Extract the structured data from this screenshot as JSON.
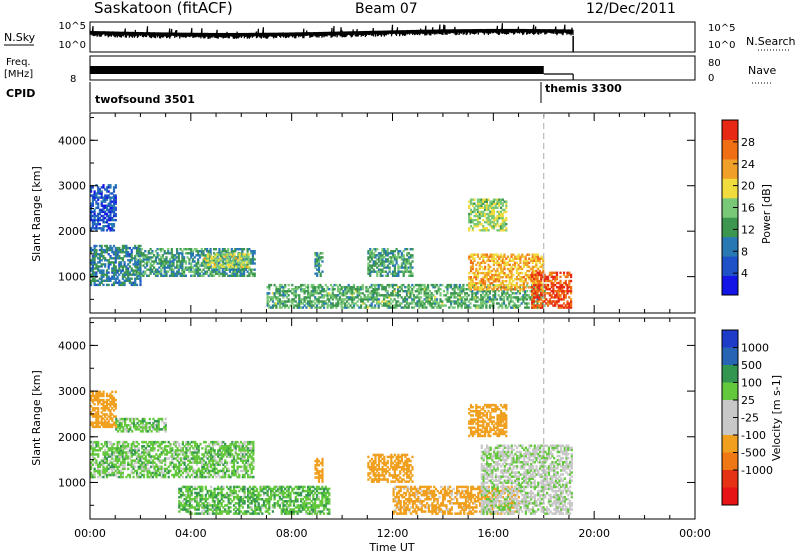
{
  "header": {
    "title": "Saskatoon (fitACF)",
    "beam": "Beam 07",
    "date": "12/Dec/2011"
  },
  "panels": {
    "nsky_label": "N.Sky",
    "nsky_ticks": [
      "10^5",
      "10^0"
    ],
    "nsearch_label": "N.Search",
    "nsearch_ticks": [
      "10^5",
      "10^0"
    ],
    "freq_label": "Freq.",
    "freq_unit": "[MHz]",
    "freq_ticks": [
      "8"
    ],
    "nave_label": "Nave",
    "nave_ticks": [
      "80",
      "0"
    ],
    "cpid_label": "CPID",
    "cpid_programs": [
      {
        "name": "twofsound 3501",
        "start": "00:00"
      },
      {
        "name": "themis 3300",
        "start": "18:00"
      }
    ]
  },
  "colors": {
    "power_scale": [
      "#1414e6",
      "#1e50c8",
      "#2878b4",
      "#3c9650",
      "#78c878",
      "#f0dc3c",
      "#f0a028",
      "#f06e14",
      "#e62814"
    ],
    "velocity_scale": [
      "#1e3cc8",
      "#2864b4",
      "#329650",
      "#64c83c",
      "#c8c8c8",
      "#c8c8c8",
      "#f0a01e",
      "#f07814",
      "#e63214",
      "#e61414"
    ]
  },
  "chart_data": [
    {
      "type": "heatmap",
      "name": "power",
      "ylabel": "Slant Range [km]",
      "yticks": [
        "1000",
        "2000",
        "3000",
        "4000"
      ],
      "ylim": [
        200,
        4600
      ],
      "xticks": [
        "00:00",
        "04:00",
        "08:00",
        "12:00",
        "16:00",
        "20:00",
        "00:00"
      ],
      "colorbar_label": "Power [dB]",
      "colorbar_ticks": [
        "4",
        "8",
        "12",
        "16",
        "20",
        "24",
        "28"
      ],
      "colorbar_range": [
        0,
        32
      ],
      "data_end": "19:10",
      "regions": [
        {
          "t0": 0.0,
          "t1": 2.0,
          "r0": 800,
          "r1": 1700,
          "v": 10
        },
        {
          "t0": 0.0,
          "t1": 1.0,
          "r0": 2000,
          "r1": 3000,
          "v": 6
        },
        {
          "t0": 1.8,
          "t1": 6.5,
          "r0": 1000,
          "r1": 1600,
          "v": 12
        },
        {
          "t0": 4.5,
          "t1": 6.3,
          "r0": 1200,
          "r1": 1500,
          "v": 18
        },
        {
          "t0": 8.9,
          "t1": 9.2,
          "r0": 1000,
          "r1": 1500,
          "v": 12
        },
        {
          "t0": 11.0,
          "t1": 12.8,
          "r0": 1000,
          "r1": 1600,
          "v": 13
        },
        {
          "t0": 7.0,
          "t1": 18.0,
          "r0": 300,
          "r1": 800,
          "v": 14
        },
        {
          "t0": 15.0,
          "t1": 16.5,
          "r0": 2000,
          "r1": 2700,
          "v": 17
        },
        {
          "t0": 15.0,
          "t1": 18.0,
          "r0": 700,
          "r1": 1500,
          "v": 22
        },
        {
          "t0": 17.5,
          "t1": 19.1,
          "r0": 300,
          "r1": 1100,
          "v": 28
        }
      ]
    },
    {
      "type": "heatmap",
      "name": "velocity",
      "ylabel": "Slant Range [km]",
      "yticks": [
        "1000",
        "2000",
        "3000",
        "4000"
      ],
      "ylim": [
        200,
        4600
      ],
      "xticks": [
        "00:00",
        "04:00",
        "08:00",
        "12:00",
        "16:00",
        "20:00",
        "00:00"
      ],
      "xlabel": "Time UT",
      "colorbar_label": "Velocity [m s-1]",
      "colorbar_ticks": [
        "1000",
        "500",
        "100",
        "25",
        "-25",
        "-100",
        "-500",
        "-1000"
      ],
      "data_end": "19:10",
      "regions": [
        {
          "t0": 0.0,
          "t1": 1.0,
          "r0": 2200,
          "r1": 3000,
          "v": -300
        },
        {
          "t0": 0.0,
          "t1": 6.5,
          "r0": 1100,
          "r1": 1900,
          "v": 60
        },
        {
          "t0": 1.0,
          "t1": 3.0,
          "r0": 2100,
          "r1": 2400,
          "v": 60
        },
        {
          "t0": 3.5,
          "t1": 9.5,
          "r0": 300,
          "r1": 900,
          "v": 80
        },
        {
          "t0": 8.9,
          "t1": 9.2,
          "r0": 1000,
          "r1": 1500,
          "v": -250
        },
        {
          "t0": 11.0,
          "t1": 12.8,
          "r0": 1000,
          "r1": 1600,
          "v": -250
        },
        {
          "t0": 12.0,
          "t1": 17.0,
          "r0": 300,
          "r1": 900,
          "v": -150
        },
        {
          "t0": 15.0,
          "t1": 16.5,
          "r0": 2000,
          "r1": 2700,
          "v": -400
        },
        {
          "t0": 15.5,
          "t1": 19.1,
          "r0": 300,
          "r1": 1800,
          "v": 0
        }
      ]
    }
  ]
}
